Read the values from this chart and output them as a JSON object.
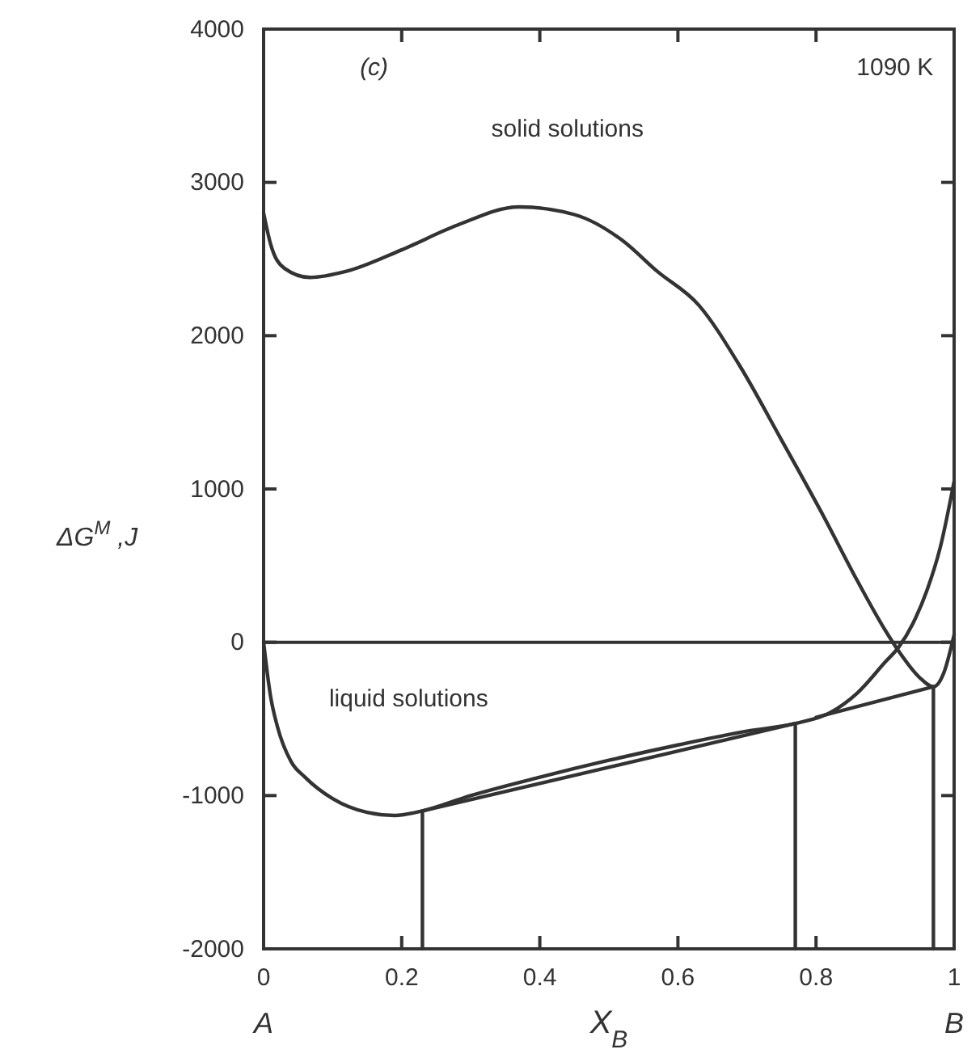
{
  "chart_data": {
    "type": "line",
    "xlabel": "X$_{B}$",
    "ylabel": "ΔG$^{M}$ ,J",
    "xlim": [
      0,
      1
    ],
    "ylim": [
      -2000,
      4000
    ],
    "xticks": [
      0,
      0.2,
      0.4,
      0.6,
      0.8,
      1
    ],
    "yticks": [
      -2000,
      -1000,
      0,
      1000,
      2000,
      3000,
      4000
    ],
    "grid": false,
    "marker": "none",
    "line_style": "solid",
    "annotations": [
      "(c)",
      "1090 K",
      "solid solutions",
      "liquid solutions",
      "A",
      "B"
    ],
    "ref_lines": [
      {
        "axis": "y",
        "value": 0,
        "color": "#333333"
      }
    ],
    "series": [
      {
        "color": "#333333",
        "x": [
          0,
          0.01,
          0.03,
          0.067,
          0.12,
          0.2,
          0.28,
          0.37,
          0.45,
          0.52,
          0.57,
          0.63,
          0.69,
          0.75,
          0.81,
          0.86,
          0.9,
          0.92,
          0.95,
          0.97,
          0.985,
          1
        ],
        "values": [
          2800,
          2600,
          2440,
          2380,
          2420,
          2560,
          2720,
          2840,
          2790,
          2620,
          2420,
          2200,
          1800,
          1320,
          830,
          400,
          80,
          -60,
          -230,
          -290,
          -200,
          50
        ]
      },
      {
        "color": "#333333",
        "x": [
          0,
          0.01,
          0.02,
          0.04,
          0.06,
          0.1,
          0.15,
          0.19,
          0.23,
          0.3,
          0.4,
          0.5,
          0.6,
          0.7,
          0.77,
          0.82,
          0.86,
          0.9,
          0.92,
          0.94,
          0.96,
          0.98,
          1
        ],
        "values": [
          0,
          -350,
          -550,
          -780,
          -880,
          -1020,
          -1110,
          -1130,
          -1100,
          -1000,
          -880,
          -770,
          -670,
          -580,
          -530,
          -460,
          -330,
          -130,
          -30,
          120,
          330,
          620,
          1050
        ]
      },
      {
        "color": "#333333",
        "x": [
          0.23,
          0.77
        ],
        "values": [
          -1100,
          -530
        ]
      },
      {
        "color": "#333333",
        "x": [
          0.8,
          0.97
        ],
        "values": [
          -490,
          -290
        ]
      },
      {
        "color": "#333333",
        "x": [
          0.23,
          0.23
        ],
        "values": [
          -1100,
          -2000
        ]
      },
      {
        "color": "#333333",
        "x": [
          0.77,
          0.77
        ],
        "values": [
          -530,
          -2000
        ]
      },
      {
        "color": "#333333",
        "x": [
          0.97,
          0.97
        ],
        "values": [
          -290,
          -2000
        ]
      }
    ]
  }
}
